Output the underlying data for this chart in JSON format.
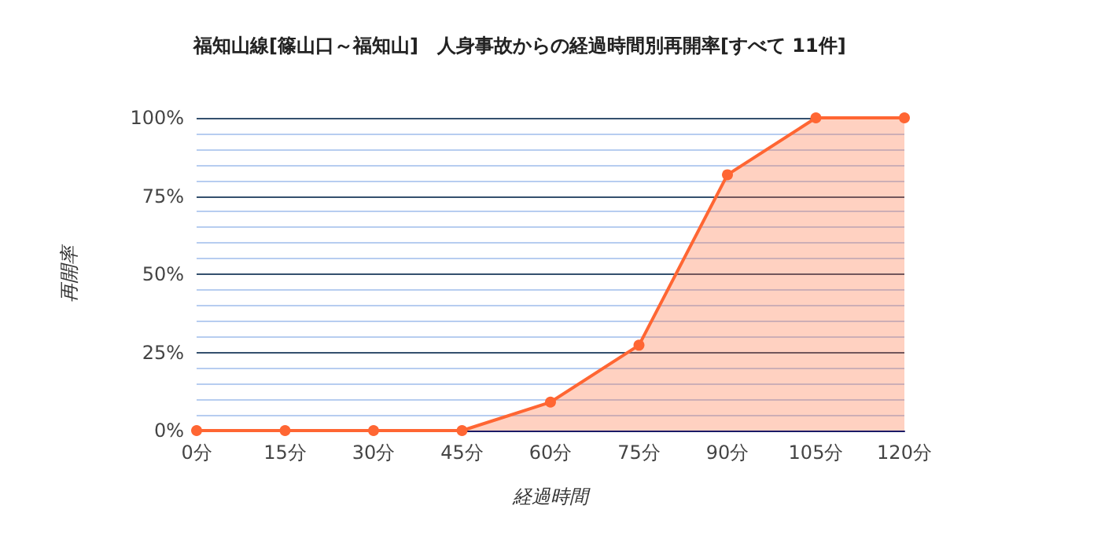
{
  "chart_data": {
    "type": "area",
    "title": "福知山線[篠山口～福知山]　人身事故からの経過時間別再開率[すべて 11件]",
    "xlabel": "経過時間",
    "ylabel": "再開率",
    "categories": [
      "0分",
      "15分",
      "30分",
      "45分",
      "60分",
      "75分",
      "90分",
      "105分",
      "120分"
    ],
    "series": [
      {
        "color": "#ff6633",
        "values": [
          0,
          0,
          0,
          0,
          9.1,
          27.3,
          81.8,
          100,
          100
        ]
      }
    ],
    "ylim": [
      0,
      100
    ],
    "yticks": [
      {
        "value": 0,
        "label": "0%"
      },
      {
        "value": 5,
        "label": null
      },
      {
        "value": 10,
        "label": null
      },
      {
        "value": 15,
        "label": null
      },
      {
        "value": 20,
        "label": null
      },
      {
        "value": 25,
        "label": "25%"
      },
      {
        "value": 30,
        "label": null
      },
      {
        "value": 35,
        "label": null
      },
      {
        "value": 40,
        "label": null
      },
      {
        "value": 45,
        "label": null
      },
      {
        "value": 50,
        "label": "50%"
      },
      {
        "value": 55,
        "label": null
      },
      {
        "value": 60,
        "label": null
      },
      {
        "value": 65,
        "label": null
      },
      {
        "value": 70,
        "label": null
      },
      {
        "value": 75,
        "label": "75%"
      },
      {
        "value": 80,
        "label": null
      },
      {
        "value": 85,
        "label": null
      },
      {
        "value": 90,
        "label": null
      },
      {
        "value": 95,
        "label": null
      },
      {
        "value": 100,
        "label": "100%"
      }
    ],
    "grid": "y",
    "marker": "circle"
  }
}
